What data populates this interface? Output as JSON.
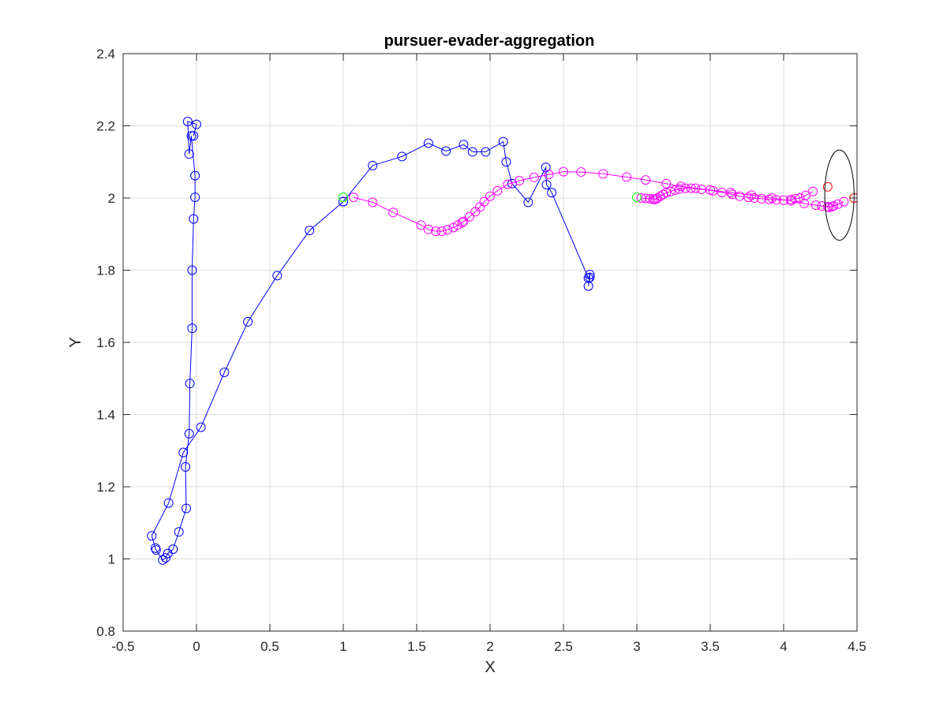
{
  "chart_data": {
    "type": "scatter",
    "title": "pursuer-evader-aggregation",
    "xlabel": "X",
    "ylabel": "Y",
    "xlim": [
      -0.5,
      4.5
    ],
    "ylim": [
      0.8,
      2.4
    ],
    "xticks": [
      -0.5,
      0,
      0.5,
      1,
      1.5,
      2,
      2.5,
      3,
      3.5,
      4,
      4.5
    ],
    "xtick_labels": [
      "-0.5",
      "0",
      "0.5",
      "1",
      "1.5",
      "2",
      "2.5",
      "3",
      "3.5",
      "4",
      "4.5"
    ],
    "yticks": [
      0.8,
      1,
      1.2,
      1.4,
      1.6,
      1.8,
      2,
      2.2,
      2.4
    ],
    "ytick_labels": [
      "0.8",
      "1",
      "1.2",
      "1.4",
      "1.6",
      "1.8",
      "2",
      "2.2",
      "2.4"
    ],
    "grid": true,
    "series": [
      {
        "color": "#0000ff",
        "marker": "circle",
        "line": true,
        "points": [
          [
            1.0,
            1.99
          ],
          [
            0.77,
            1.91
          ],
          [
            0.55,
            1.785
          ],
          [
            0.35,
            1.657
          ],
          [
            0.19,
            1.517
          ],
          [
            0.03,
            1.365
          ],
          [
            -0.09,
            1.295
          ],
          [
            -0.19,
            1.155
          ],
          [
            -0.305,
            1.064
          ],
          [
            -0.28,
            1.03
          ],
          [
            -0.275,
            1.025
          ],
          [
            -0.23,
            0.997
          ],
          [
            -0.21,
            1.003
          ],
          [
            -0.195,
            1.015
          ],
          [
            -0.16,
            1.027
          ],
          [
            -0.12,
            1.075
          ],
          [
            -0.07,
            1.14
          ],
          [
            -0.075,
            1.255
          ],
          [
            -0.05,
            1.347
          ],
          [
            -0.045,
            1.486
          ],
          [
            -0.03,
            1.639
          ],
          [
            -0.03,
            1.8
          ],
          [
            -0.02,
            1.942
          ],
          [
            -0.01,
            2.002
          ],
          [
            -0.01,
            2.062
          ],
          [
            -0.035,
            2.172
          ],
          [
            -0.05,
            2.122
          ],
          [
            -0.06,
            2.212
          ],
          [
            0.0,
            2.204
          ],
          [
            -0.02,
            2.172
          ]
        ]
      },
      {
        "color": "#0000ff",
        "marker": "circle",
        "line": true,
        "points": [
          [
            1.0,
            1.99
          ],
          [
            1.2,
            2.09
          ],
          [
            1.4,
            2.115
          ],
          [
            1.58,
            2.152
          ],
          [
            1.7,
            2.13
          ],
          [
            1.82,
            2.148
          ],
          [
            1.88,
            2.128
          ],
          [
            1.97,
            2.128
          ],
          [
            2.09,
            2.156
          ],
          [
            2.11,
            2.1
          ],
          [
            2.15,
            2.04
          ],
          [
            2.26,
            1.988
          ],
          [
            2.38,
            2.085
          ],
          [
            2.385,
            2.037
          ],
          [
            2.42,
            2.015
          ],
          [
            2.67,
            1.778
          ],
          [
            2.68,
            1.788
          ],
          [
            2.67,
            1.756
          ],
          [
            2.68,
            1.78
          ]
        ]
      },
      {
        "color": "#ff00ff",
        "marker": "circle",
        "line": true,
        "points": [
          [
            1.07,
            2.002
          ],
          [
            1.2,
            1.988
          ],
          [
            1.34,
            1.96
          ],
          [
            1.53,
            1.925
          ],
          [
            1.58,
            1.913
          ],
          [
            1.63,
            1.908
          ],
          [
            1.67,
            1.908
          ],
          [
            1.71,
            1.912
          ],
          [
            1.75,
            1.918
          ],
          [
            1.78,
            1.925
          ],
          [
            1.81,
            1.932
          ],
          [
            1.82,
            1.935
          ],
          [
            1.86,
            1.948
          ],
          [
            1.9,
            1.962
          ],
          [
            1.93,
            1.975
          ],
          [
            1.96,
            1.99
          ],
          [
            2.0,
            2.005
          ],
          [
            2.05,
            2.02
          ],
          [
            2.12,
            2.038
          ],
          [
            2.2,
            2.048
          ],
          [
            2.3,
            2.057
          ],
          [
            2.4,
            2.065
          ],
          [
            2.5,
            2.073
          ],
          [
            2.62,
            2.072
          ],
          [
            2.77,
            2.067
          ],
          [
            2.93,
            2.058
          ],
          [
            3.06,
            2.05
          ],
          [
            3.2,
            2.04
          ],
          [
            3.3,
            2.032
          ],
          [
            3.4,
            2.027
          ],
          [
            3.5,
            2.022
          ],
          [
            3.64,
            2.015
          ],
          [
            3.78,
            2.008
          ],
          [
            3.92,
            2.0
          ],
          [
            4.05,
            1.992
          ],
          [
            4.14,
            1.985
          ],
          [
            4.22,
            1.98
          ],
          [
            4.26,
            1.978
          ],
          [
            4.3,
            1.976
          ],
          [
            4.33,
            1.976
          ]
        ]
      },
      {
        "color": "#ff00ff",
        "marker": "circle",
        "line": true,
        "points": [
          [
            3.03,
            2.0
          ],
          [
            3.06,
            1.999
          ],
          [
            3.09,
            1.998
          ],
          [
            3.11,
            1.997
          ],
          [
            3.12,
            1.996
          ],
          [
            3.13,
            1.997
          ],
          [
            3.14,
            2.0
          ],
          [
            3.16,
            2.005
          ],
          [
            3.18,
            2.01
          ],
          [
            3.2,
            2.015
          ],
          [
            3.23,
            2.018
          ],
          [
            3.26,
            2.022
          ],
          [
            3.29,
            2.025
          ],
          [
            3.33,
            2.027
          ],
          [
            3.37,
            2.027
          ],
          [
            3.44,
            2.024
          ],
          [
            3.52,
            2.02
          ],
          [
            3.58,
            2.015
          ],
          [
            3.65,
            2.01
          ],
          [
            3.7,
            2.005
          ],
          [
            3.76,
            2.002
          ],
          [
            3.8,
            2.0
          ],
          [
            3.85,
            1.998
          ],
          [
            3.9,
            1.996
          ],
          [
            3.95,
            1.995
          ],
          [
            4.0,
            1.994
          ],
          [
            4.05,
            1.996
          ],
          [
            4.08,
            1.998
          ],
          [
            4.11,
            2.0
          ],
          [
            4.15,
            2.007
          ],
          [
            4.2,
            2.018
          ]
        ]
      },
      {
        "color": "#ff00ff",
        "marker": "circle",
        "line": true,
        "points": [
          [
            4.31,
            1.974
          ],
          [
            4.34,
            1.978
          ],
          [
            4.37,
            1.983
          ],
          [
            4.41,
            1.99
          ]
        ]
      },
      {
        "color": "#00ff00",
        "marker": "circle",
        "line": false,
        "points": [
          [
            1.0,
            2.002
          ],
          [
            3.0,
            2.002
          ]
        ]
      },
      {
        "color": "#ff0000",
        "marker": "circle",
        "line": false,
        "points": [
          [
            4.3,
            2.031
          ],
          [
            4.48,
            2.0
          ]
        ]
      }
    ],
    "ellipse": {
      "color": "#000000",
      "cx": 4.38,
      "cy": 2.008,
      "rx": 0.1,
      "ry": 0.125
    }
  }
}
